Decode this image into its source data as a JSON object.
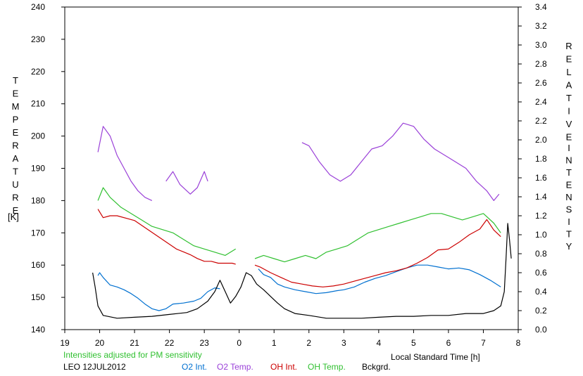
{
  "chart_data": {
    "type": "line",
    "x_axis": {
      "label": "Local Standard Time [h]",
      "range": [
        19,
        32
      ],
      "tick_labels": [
        "19",
        "20",
        "21",
        "22",
        "23",
        "0",
        "1",
        "2",
        "3",
        "4",
        "5",
        "6",
        "7",
        "8"
      ]
    },
    "y_left": {
      "label_letters": [
        "T",
        "E",
        "M",
        "P",
        "E",
        "R",
        "A",
        "T",
        "U",
        "R",
        "E"
      ],
      "unit": "[K]",
      "range": [
        140,
        240
      ],
      "tick_labels": [
        "140",
        "150",
        "160",
        "170",
        "180",
        "190",
        "200",
        "210",
        "220",
        "230",
        "240"
      ]
    },
    "y_right": {
      "label_word1": [
        "R",
        "E",
        "L",
        "A",
        "T",
        "I",
        "V",
        "E"
      ],
      "label_word2": [
        "I",
        "N",
        "T",
        "E",
        "N",
        "S",
        "I",
        "T",
        "Y"
      ],
      "range": [
        0.0,
        3.4
      ],
      "tick_labels": [
        "0.0",
        "0.2",
        "0.4",
        "0.6",
        "0.8",
        "1.0",
        "1.2",
        "1.4",
        "1.6",
        "1.8",
        "2.0",
        "2.2",
        "2.4",
        "2.6",
        "2.8",
        "3.0",
        "3.2",
        "3.4"
      ]
    },
    "annotation": "Intensities adjusted for PM sensitivity",
    "site_date": "LEO 12JUL2012",
    "series": [
      {
        "name": "O2 Int.",
        "color": "#0070d0",
        "axis": "right",
        "segments": [
          [
            [
              19.95,
              0.57
            ],
            [
              20.0,
              0.6
            ],
            [
              20.1,
              0.55
            ],
            [
              20.3,
              0.47
            ],
            [
              20.5,
              0.45
            ],
            [
              20.7,
              0.42
            ],
            [
              20.9,
              0.38
            ],
            [
              21.1,
              0.33
            ],
            [
              21.3,
              0.27
            ],
            [
              21.5,
              0.22
            ],
            [
              21.7,
              0.2
            ],
            [
              21.9,
              0.22
            ],
            [
              22.1,
              0.27
            ],
            [
              22.4,
              0.28
            ],
            [
              22.7,
              0.3
            ],
            [
              22.9,
              0.33
            ],
            [
              23.1,
              0.4
            ],
            [
              23.3,
              0.44
            ],
            [
              23.45,
              0.43
            ]
          ],
          [
            [
              24.55,
              0.64
            ],
            [
              24.7,
              0.58
            ],
            [
              24.9,
              0.55
            ],
            [
              25.1,
              0.48
            ],
            [
              25.3,
              0.45
            ],
            [
              25.6,
              0.42
            ],
            [
              25.9,
              0.4
            ],
            [
              26.2,
              0.38
            ],
            [
              26.5,
              0.39
            ],
            [
              26.8,
              0.41
            ],
            [
              27.0,
              0.42
            ],
            [
              27.3,
              0.45
            ],
            [
              27.6,
              0.5
            ],
            [
              27.9,
              0.54
            ],
            [
              28.2,
              0.57
            ],
            [
              28.5,
              0.61
            ],
            [
              28.8,
              0.65
            ],
            [
              29.1,
              0.68
            ],
            [
              29.4,
              0.68
            ],
            [
              29.7,
              0.66
            ],
            [
              30.0,
              0.64
            ],
            [
              30.3,
              0.65
            ],
            [
              30.6,
              0.63
            ],
            [
              30.9,
              0.58
            ],
            [
              31.2,
              0.52
            ],
            [
              31.5,
              0.45
            ]
          ]
        ]
      },
      {
        "name": "O2 Temp.",
        "color": "#9a40d8",
        "axis": "left",
        "segments": [
          [
            [
              19.95,
              195
            ],
            [
              20.1,
              203
            ],
            [
              20.3,
              200
            ],
            [
              20.5,
              194
            ],
            [
              20.7,
              190
            ],
            [
              20.9,
              186
            ],
            [
              21.1,
              183
            ],
            [
              21.3,
              181
            ],
            [
              21.5,
              180
            ]
          ],
          [
            [
              21.9,
              186
            ],
            [
              22.1,
              189
            ],
            [
              22.3,
              185
            ],
            [
              22.6,
              182
            ],
            [
              22.8,
              184
            ],
            [
              23.0,
              189
            ],
            [
              23.1,
              186
            ]
          ],
          [
            [
              25.8,
              198
            ],
            [
              26.0,
              197
            ],
            [
              26.3,
              192
            ],
            [
              26.6,
              188
            ],
            [
              26.9,
              186
            ],
            [
              27.2,
              188
            ],
            [
              27.5,
              192
            ],
            [
              27.8,
              196
            ],
            [
              28.1,
              197
            ],
            [
              28.4,
              200
            ],
            [
              28.7,
              204
            ],
            [
              29.0,
              203
            ],
            [
              29.3,
              199
            ],
            [
              29.6,
              196
            ],
            [
              29.9,
              194
            ],
            [
              30.2,
              192
            ],
            [
              30.5,
              190
            ],
            [
              30.8,
              186
            ],
            [
              31.1,
              183
            ],
            [
              31.3,
              180
            ],
            [
              31.45,
              182
            ]
          ]
        ]
      },
      {
        "name": "OH Int.",
        "color": "#cc0000",
        "axis": "right",
        "segments": [
          [
            [
              19.95,
              1.27
            ],
            [
              20.1,
              1.18
            ],
            [
              20.3,
              1.2
            ],
            [
              20.5,
              1.2
            ],
            [
              20.8,
              1.17
            ],
            [
              21.0,
              1.15
            ],
            [
              21.2,
              1.1
            ],
            [
              21.4,
              1.05
            ],
            [
              21.6,
              1.0
            ],
            [
              21.8,
              0.95
            ],
            [
              22.0,
              0.9
            ],
            [
              22.2,
              0.85
            ],
            [
              22.4,
              0.82
            ],
            [
              22.6,
              0.79
            ],
            [
              22.8,
              0.75
            ],
            [
              23.0,
              0.72
            ],
            [
              23.2,
              0.72
            ],
            [
              23.4,
              0.7
            ],
            [
              23.6,
              0.7
            ],
            [
              23.8,
              0.7
            ],
            [
              23.9,
              0.69
            ]
          ],
          [
            [
              24.45,
              0.68
            ],
            [
              24.6,
              0.66
            ],
            [
              24.9,
              0.6
            ],
            [
              25.2,
              0.55
            ],
            [
              25.5,
              0.5
            ],
            [
              25.8,
              0.48
            ],
            [
              26.1,
              0.46
            ],
            [
              26.4,
              0.45
            ],
            [
              26.7,
              0.46
            ],
            [
              27.0,
              0.48
            ],
            [
              27.3,
              0.51
            ],
            [
              27.6,
              0.54
            ],
            [
              27.9,
              0.57
            ],
            [
              28.2,
              0.6
            ],
            [
              28.5,
              0.62
            ],
            [
              28.8,
              0.65
            ],
            [
              29.1,
              0.7
            ],
            [
              29.4,
              0.76
            ],
            [
              29.7,
              0.84
            ],
            [
              30.0,
              0.85
            ],
            [
              30.3,
              0.92
            ],
            [
              30.6,
              1.0
            ],
            [
              30.9,
              1.06
            ],
            [
              31.1,
              1.16
            ],
            [
              31.3,
              1.05
            ],
            [
              31.5,
              0.98
            ]
          ]
        ]
      },
      {
        "name": "OH Temp.",
        "color": "#30c030",
        "axis": "left",
        "segments": [
          [
            [
              19.95,
              180
            ],
            [
              20.1,
              184
            ],
            [
              20.3,
              181
            ],
            [
              20.6,
              178
            ],
            [
              20.9,
              176
            ],
            [
              21.2,
              174
            ],
            [
              21.5,
              172
            ],
            [
              21.8,
              171
            ],
            [
              22.1,
              170
            ],
            [
              22.4,
              168
            ],
            [
              22.7,
              166
            ],
            [
              23.0,
              165
            ],
            [
              23.3,
              164
            ],
            [
              23.6,
              163
            ],
            [
              23.9,
              165
            ]
          ],
          [
            [
              24.45,
              162
            ],
            [
              24.7,
              163
            ],
            [
              25.0,
              162
            ],
            [
              25.3,
              161
            ],
            [
              25.6,
              162
            ],
            [
              25.9,
              163
            ],
            [
              26.2,
              162
            ],
            [
              26.5,
              164
            ],
            [
              26.8,
              165
            ],
            [
              27.1,
              166
            ],
            [
              27.4,
              168
            ],
            [
              27.7,
              170
            ],
            [
              28.0,
              171
            ],
            [
              28.3,
              172
            ],
            [
              28.6,
              173
            ],
            [
              28.9,
              174
            ],
            [
              29.2,
              175
            ],
            [
              29.5,
              176
            ],
            [
              29.8,
              176
            ],
            [
              30.1,
              175
            ],
            [
              30.4,
              174
            ],
            [
              30.7,
              175
            ],
            [
              31.0,
              176
            ],
            [
              31.3,
              173
            ],
            [
              31.5,
              170
            ]
          ]
        ]
      },
      {
        "name": "Bckgrd.",
        "color": "#000000",
        "axis": "right",
        "segments": [
          [
            [
              19.8,
              0.6
            ],
            [
              19.87,
              0.45
            ],
            [
              19.95,
              0.25
            ],
            [
              20.1,
              0.15
            ],
            [
              20.5,
              0.12
            ],
            [
              21.0,
              0.13
            ],
            [
              21.5,
              0.14
            ],
            [
              22.0,
              0.16
            ],
            [
              22.5,
              0.18
            ],
            [
              22.8,
              0.22
            ],
            [
              23.1,
              0.3
            ],
            [
              23.3,
              0.4
            ],
            [
              23.45,
              0.52
            ],
            [
              23.6,
              0.4
            ],
            [
              23.75,
              0.28
            ],
            [
              23.9,
              0.35
            ],
            [
              24.05,
              0.45
            ],
            [
              24.2,
              0.6
            ],
            [
              24.35,
              0.57
            ],
            [
              24.5,
              0.48
            ],
            [
              24.7,
              0.42
            ],
            [
              24.9,
              0.35
            ],
            [
              25.1,
              0.28
            ],
            [
              25.3,
              0.22
            ],
            [
              25.6,
              0.17
            ],
            [
              26.0,
              0.15
            ],
            [
              26.5,
              0.12
            ],
            [
              27.0,
              0.12
            ],
            [
              27.5,
              0.12
            ],
            [
              28.0,
              0.13
            ],
            [
              28.5,
              0.14
            ],
            [
              29.0,
              0.14
            ],
            [
              29.5,
              0.15
            ],
            [
              30.0,
              0.15
            ],
            [
              30.5,
              0.17
            ],
            [
              31.0,
              0.17
            ],
            [
              31.3,
              0.2
            ],
            [
              31.5,
              0.25
            ],
            [
              31.6,
              0.4
            ],
            [
              31.65,
              0.75
            ],
            [
              31.7,
              1.12
            ],
            [
              31.75,
              0.95
            ],
            [
              31.8,
              0.75
            ]
          ]
        ]
      }
    ]
  }
}
